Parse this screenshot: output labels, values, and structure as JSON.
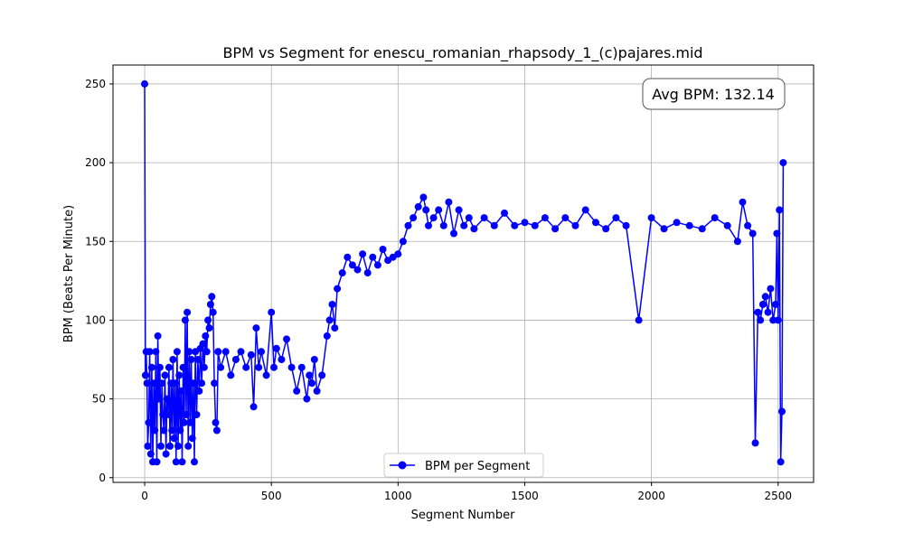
{
  "chart_data": {
    "type": "line",
    "title": "BPM vs Segment for enescu_romanian_rhapsody_1_(c)pajares.mid",
    "xlabel": "Segment Number",
    "ylabel": "BPM (Beats Per Minute)",
    "xlim": [
      -125,
      2640
    ],
    "ylim": [
      -3,
      262
    ],
    "xticks": [
      0,
      500,
      1000,
      1500,
      2000,
      2500
    ],
    "yticks": [
      0,
      50,
      100,
      150,
      200,
      250
    ],
    "grid": true,
    "legend_position": "lower-center",
    "annotation": "Avg BPM: 132.14",
    "series": [
      {
        "name": "BPM per Segment",
        "color": "#0000ff",
        "marker": "circle",
        "x": [
          0,
          3,
          6,
          9,
          12,
          16,
          20,
          24,
          28,
          32,
          36,
          40,
          44,
          48,
          52,
          56,
          60,
          64,
          68,
          72,
          76,
          80,
          84,
          88,
          92,
          96,
          100,
          104,
          108,
          112,
          116,
          120,
          124,
          128,
          132,
          136,
          140,
          144,
          148,
          152,
          156,
          160,
          164,
          168,
          172,
          176,
          180,
          184,
          188,
          192,
          196,
          200,
          205,
          210,
          215,
          220,
          225,
          230,
          235,
          240,
          245,
          250,
          255,
          260,
          265,
          270,
          275,
          280,
          285,
          290,
          300,
          320,
          340,
          360,
          380,
          400,
          420,
          430,
          440,
          450,
          460,
          480,
          500,
          510,
          520,
          540,
          560,
          580,
          600,
          620,
          640,
          650,
          660,
          670,
          680,
          700,
          720,
          730,
          740,
          750,
          760,
          780,
          800,
          820,
          840,
          860,
          880,
          900,
          920,
          940,
          960,
          980,
          1000,
          1020,
          1040,
          1060,
          1080,
          1100,
          1110,
          1120,
          1140,
          1160,
          1180,
          1200,
          1220,
          1240,
          1260,
          1280,
          1300,
          1340,
          1380,
          1420,
          1460,
          1500,
          1540,
          1580,
          1620,
          1660,
          1700,
          1740,
          1780,
          1820,
          1860,
          1900,
          1950,
          2000,
          2050,
          2100,
          2150,
          2200,
          2250,
          2300,
          2340,
          2360,
          2380,
          2400,
          2410,
          2420,
          2430,
          2440,
          2450,
          2460,
          2470,
          2480,
          2490,
          2495,
          2500,
          2505,
          2510,
          2515,
          2520
        ],
        "y": [
          250,
          65,
          80,
          60,
          20,
          35,
          80,
          15,
          70,
          10,
          60,
          30,
          80,
          10,
          90,
          50,
          70,
          20,
          60,
          40,
          30,
          65,
          15,
          50,
          40,
          70,
          20,
          60,
          30,
          75,
          25,
          60,
          10,
          80,
          20,
          65,
          30,
          55,
          10,
          70,
          35,
          100,
          40,
          105,
          20,
          80,
          35,
          75,
          25,
          60,
          10,
          80,
          40,
          75,
          55,
          82,
          60,
          85,
          70,
          90,
          80,
          100,
          95,
          110,
          115,
          105,
          60,
          35,
          30,
          80,
          70,
          80,
          65,
          75,
          80,
          70,
          78,
          45,
          95,
          70,
          80,
          65,
          105,
          70,
          82,
          75,
          88,
          70,
          55,
          70,
          50,
          65,
          60,
          75,
          55,
          65,
          90,
          100,
          110,
          95,
          120,
          130,
          140,
          135,
          132,
          142,
          130,
          140,
          135,
          145,
          138,
          140,
          142,
          150,
          160,
          165,
          172,
          178,
          170,
          160,
          165,
          170,
          160,
          175,
          155,
          170,
          160,
          165,
          158,
          165,
          160,
          168,
          160,
          162,
          160,
          165,
          158,
          165,
          160,
          170,
          162,
          158,
          165,
          160,
          100,
          165,
          158,
          162,
          160,
          158,
          165,
          160,
          150,
          175,
          160,
          155,
          22,
          105,
          100,
          110,
          115,
          105,
          120,
          100,
          110,
          155,
          100,
          170,
          10,
          42,
          200
        ]
      }
    ]
  }
}
